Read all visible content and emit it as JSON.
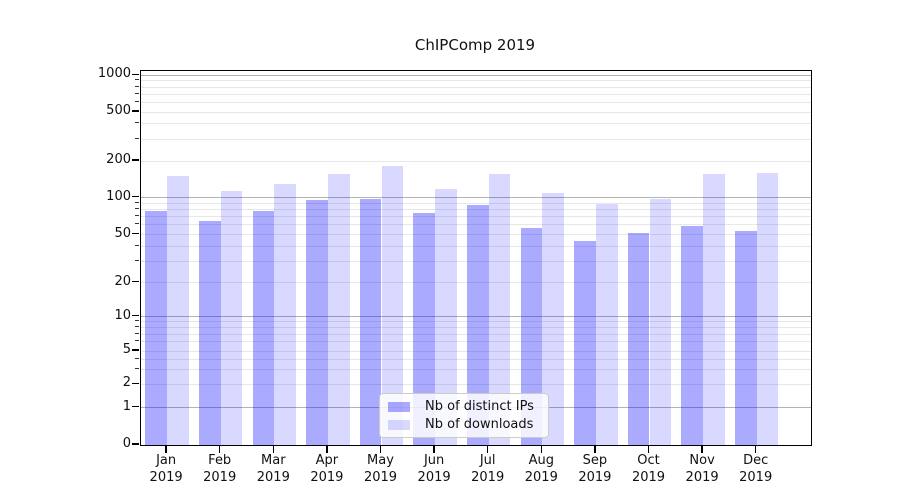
{
  "title": "ChIPComp 2019",
  "chart_data": {
    "type": "bar",
    "title": "ChIPComp 2019",
    "categories": [
      "Jan 2019",
      "Feb 2019",
      "Mar 2019",
      "Apr 2019",
      "May 2019",
      "Jun 2019",
      "Jul 2019",
      "Aug 2019",
      "Sep 2019",
      "Oct 2019",
      "Nov 2019",
      "Dec 2019"
    ],
    "series": [
      {
        "name": "Nb of distinct IPs",
        "values": [
          78,
          64,
          78,
          95,
          98,
          75,
          87,
          56,
          44,
          51,
          59,
          53
        ],
        "color_hex": "#aaaaff",
        "color_rgba": "rgba(0,0,255,0.333)"
      },
      {
        "name": "Nb of downloads",
        "values": [
          150,
          113,
          130,
          157,
          183,
          117,
          155,
          110,
          89,
          98,
          156,
          158
        ],
        "color_hex": "#d9d9ff",
        "color_rgba": "rgba(0,0,255,0.149)"
      }
    ],
    "yscale": "log-with-zero",
    "yticks": [
      0,
      1,
      2,
      5,
      10,
      20,
      50,
      100,
      200,
      500,
      1000
    ],
    "yticklabels": [
      "0",
      "1",
      "2",
      "5",
      "10",
      "20",
      "50",
      "100",
      "200",
      "500",
      "1000"
    ],
    "minor_grid_values": [
      3,
      4,
      6,
      7,
      8,
      9,
      30,
      40,
      60,
      70,
      80,
      90,
      300,
      400,
      600,
      700,
      800,
      900
    ],
    "major_grid_values": [
      1,
      10,
      100,
      1000
    ],
    "light_grid_values": [
      2,
      5,
      20,
      50,
      200,
      500
    ],
    "ylim": [
      0,
      1100
    ],
    "grid": true,
    "legend_position": "lower center",
    "grid_major_color": "#b3b3b3",
    "grid_minor_color": "#e7e7e7"
  },
  "legend": {
    "items": [
      {
        "label": "Nb of distinct IPs"
      },
      {
        "label": "Nb of downloads"
      }
    ]
  }
}
